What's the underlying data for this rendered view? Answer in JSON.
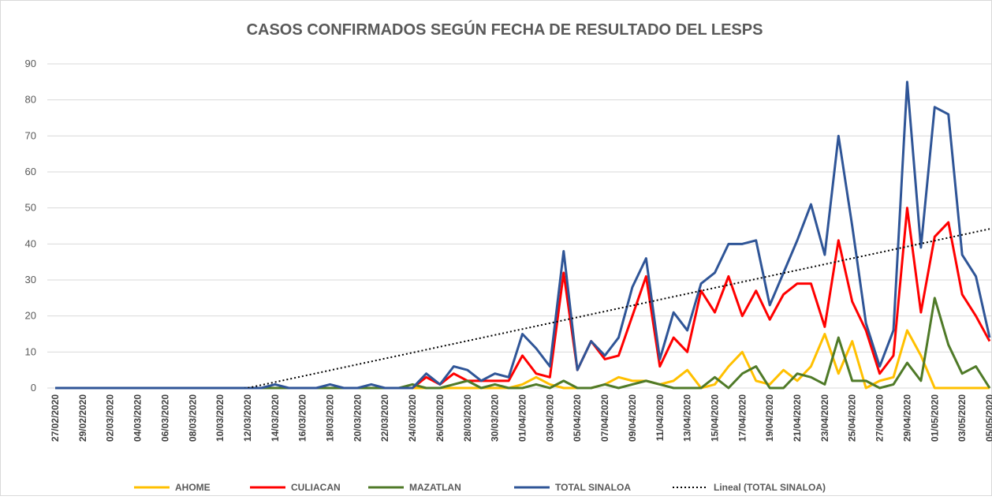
{
  "chart_data": {
    "type": "line",
    "title": "CASOS CONFIRMADOS SEGÚN FECHA DE RESULTADO DEL  LESPS",
    "categories": [
      "27/02/2020",
      null,
      "29/02/2020",
      null,
      "02/03/2020",
      null,
      "04/03/2020",
      null,
      "06/03/2020",
      null,
      "08/03/2020",
      null,
      "10/03/2020",
      null,
      "12/03/2020",
      null,
      "14/03/2020",
      null,
      "16/03/2020",
      null,
      "18/03/2020",
      null,
      "20/03/2020",
      null,
      "22/03/2020",
      null,
      "24/03/2020",
      null,
      "26/03/2020",
      null,
      "28/03/2020",
      null,
      "30/03/2020",
      null,
      "01/04/2020",
      null,
      "03/04/2020",
      null,
      "05/04/2020",
      null,
      "07/04/2020",
      null,
      "09/04/2020",
      null,
      "11/04/2020",
      null,
      "13/04/2020",
      null,
      "15/04/2020",
      null,
      "17/04/2020",
      null,
      "19/04/2020",
      null,
      "21/04/2020",
      null,
      "23/04/2020",
      null,
      "25/04/2020",
      null,
      "27/04/2020",
      null,
      "29/04/2020",
      null,
      "01/05/2020",
      null,
      "03/05/2020",
      null,
      "05/05/2020"
    ],
    "series": [
      {
        "name": "AHOME",
        "color": "#ffc000",
        "values": [
          0,
          0,
          0,
          0,
          0,
          0,
          0,
          0,
          0,
          0,
          0,
          0,
          0,
          0,
          0,
          0,
          0,
          0,
          0,
          0,
          0,
          0,
          0,
          0,
          0,
          0,
          0,
          0,
          0,
          0,
          0,
          0,
          0,
          0,
          1,
          3,
          1,
          0,
          0,
          0,
          1,
          3,
          2,
          2,
          1,
          2,
          5,
          0,
          1,
          6,
          10,
          2,
          1,
          5,
          2,
          6,
          15,
          4,
          13,
          0,
          2,
          3,
          16,
          9,
          0,
          0,
          0,
          0,
          0
        ]
      },
      {
        "name": "CULIACAN",
        "color": "#ff0000",
        "values": [
          0,
          0,
          0,
          0,
          0,
          0,
          0,
          0,
          0,
          0,
          0,
          0,
          0,
          0,
          0,
          0,
          0,
          0,
          0,
          0,
          0,
          0,
          0,
          0,
          0,
          0,
          0,
          3,
          1,
          4,
          2,
          2,
          2,
          2,
          9,
          4,
          3,
          32,
          5,
          13,
          8,
          9,
          20,
          31,
          6,
          14,
          10,
          27,
          21,
          31,
          20,
          27,
          19,
          26,
          29,
          29,
          17,
          41,
          24,
          16,
          4,
          9,
          50,
          21,
          42,
          46,
          26,
          20,
          13
        ]
      },
      {
        "name": "MAZATLAN",
        "color": "#4f7a28",
        "values": [
          0,
          0,
          0,
          0,
          0,
          0,
          0,
          0,
          0,
          0,
          0,
          0,
          0,
          0,
          0,
          0,
          0,
          0,
          0,
          0,
          0,
          0,
          0,
          0,
          0,
          0,
          1,
          0,
          0,
          1,
          2,
          0,
          1,
          0,
          0,
          1,
          0,
          2,
          0,
          0,
          1,
          0,
          1,
          2,
          1,
          0,
          0,
          0,
          3,
          0,
          4,
          6,
          0,
          0,
          4,
          3,
          1,
          14,
          2,
          2,
          0,
          1,
          7,
          2,
          25,
          12,
          4,
          6,
          0
        ]
      },
      {
        "name": "TOTAL SINALOA",
        "color": "#2f5597",
        "values": [
          0,
          0,
          0,
          0,
          0,
          0,
          0,
          0,
          0,
          0,
          0,
          0,
          0,
          0,
          0,
          0,
          1,
          0,
          0,
          0,
          1,
          0,
          0,
          1,
          0,
          0,
          0,
          4,
          1,
          6,
          5,
          2,
          4,
          3,
          15,
          11,
          6,
          38,
          5,
          13,
          9,
          14,
          28,
          36,
          8,
          21,
          16,
          29,
          32,
          40,
          40,
          41,
          23,
          32,
          41,
          51,
          37,
          70,
          45,
          18,
          6,
          16,
          85,
          39,
          78,
          76,
          37,
          31,
          14
        ]
      }
    ],
    "trendline": {
      "name": "Lineal (TOTAL SINALOA)",
      "series": 3,
      "color": "#000000"
    },
    "ylim": [
      0,
      90
    ],
    "yticks": [
      0,
      10,
      20,
      30,
      40,
      50,
      60,
      70,
      80,
      90
    ],
    "grid": true,
    "legend": "bottom"
  }
}
